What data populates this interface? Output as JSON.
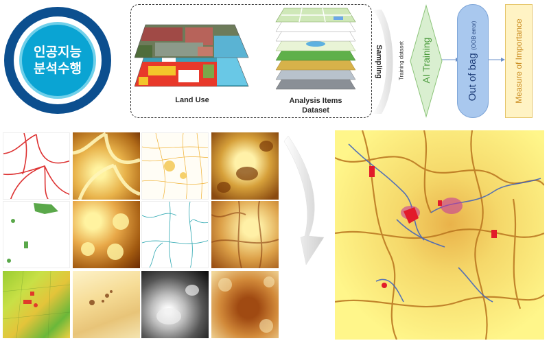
{
  "badge": {
    "line1": "인공지능",
    "line2": "분석수행"
  },
  "dataset_box": {
    "land_use_label": "Land Use",
    "analysis_label_line1": "Analysis Items",
    "analysis_label_line2": "Dataset"
  },
  "flow": {
    "sampling_label": "Sampling",
    "training_dataset_label": "Training dataset",
    "ai_training_label": "AI Training",
    "oob_label_main": "Out of bag",
    "oob_label_sub": "(OOB error)",
    "importance_label": "Measure of Importance"
  },
  "colors": {
    "navy": "#0c4f8f",
    "cyan": "#0aa4d3",
    "green_diamond": "#d9efd0",
    "green_text": "#4a9a3c",
    "oob_fill": "#a9c8ee",
    "oob_text": "#1f3f7a",
    "importance_fill": "#fff3c4",
    "importance_text": "#c98a1c"
  }
}
